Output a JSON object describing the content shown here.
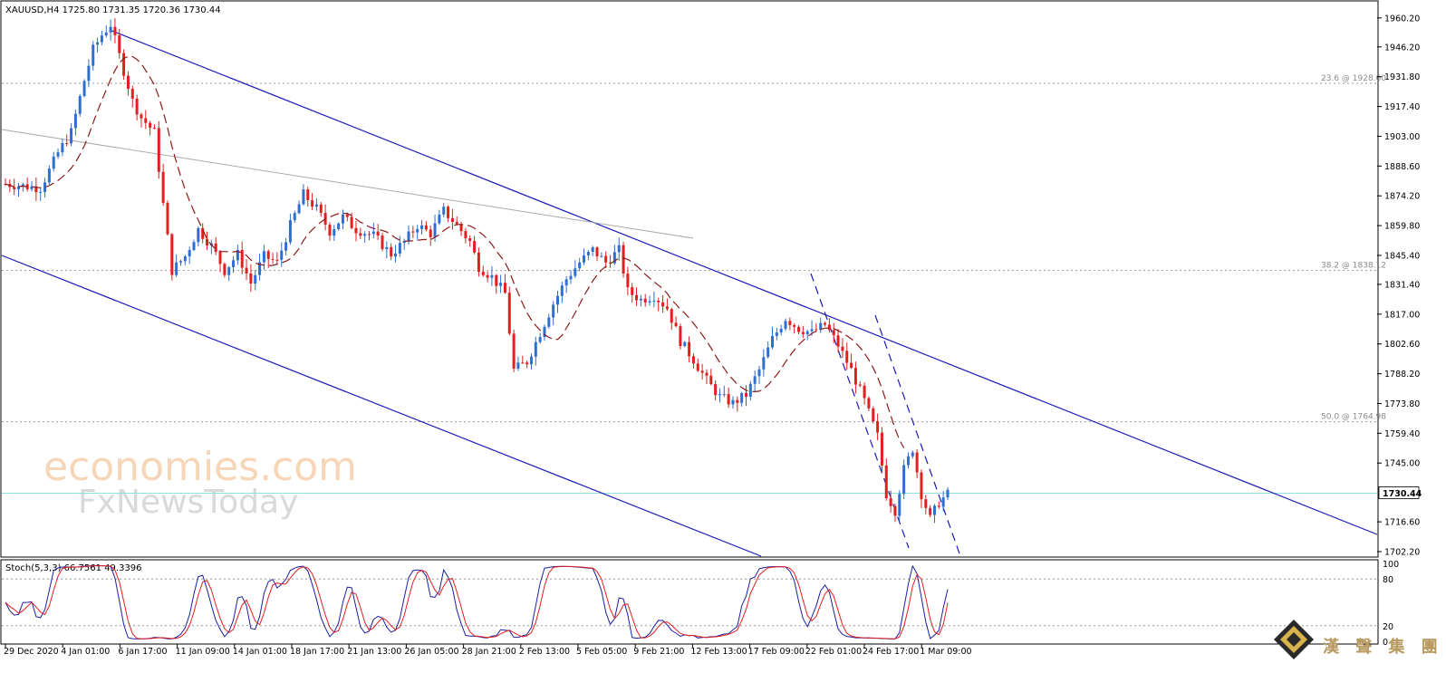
{
  "chart_data": [
    {
      "type": "candlestick",
      "title": "XAUUSD,H4  1725.80 1731.35 1720.36 1730.44",
      "ylim": [
        1700,
        1968
      ],
      "ticks": [
        "1960.20",
        "1946.20",
        "1931.80",
        "1917.40",
        "1903.00",
        "1888.60",
        "1874.20",
        "1859.80",
        "1845.40",
        "1831.40",
        "1817.00",
        "1802.60",
        "1788.20",
        "1773.80",
        "1759.40",
        "1745.00",
        "1730.44",
        "1716.60",
        "1702.20"
      ],
      "x_labels": [
        "29 Dec 2020",
        "4 Jan 01:00",
        "6 Jan 17:00",
        "11 Jan 09:00",
        "14 Jan 01:00",
        "18 Jan 17:00",
        "21 Jan 13:00",
        "26 Jan 05:00",
        "28 Jan 21:00",
        "2 Feb 13:00",
        "5 Feb 05:00",
        "9 Feb 21:00",
        "12 Feb 13:00",
        "17 Feb 09:00",
        "22 Feb 01:00",
        "24 Feb 17:00",
        "1 Mar 09:00"
      ],
      "current_price": "1730.44",
      "fib_levels": [
        {
          "label": "23.6 @ 1928.60",
          "value": 1928.6
        },
        {
          "label": "38.2 @ 1838.12",
          "value": 1838.12
        },
        {
          "label": "50.0 @ 1764.98",
          "value": 1764.98
        }
      ],
      "close_path": [
        [
          0,
          1880
        ],
        [
          8,
          1878
        ],
        [
          12,
          1895
        ],
        [
          15,
          1905
        ],
        [
          18,
          1930
        ],
        [
          20,
          1945
        ],
        [
          22,
          1952
        ],
        [
          24,
          1957
        ],
        [
          26,
          1942
        ],
        [
          29,
          1920
        ],
        [
          31,
          1912
        ],
        [
          34,
          1905
        ],
        [
          36,
          1870
        ],
        [
          38,
          1838
        ],
        [
          41,
          1845
        ],
        [
          44,
          1858
        ],
        [
          47,
          1850
        ],
        [
          50,
          1838
        ],
        [
          53,
          1846
        ],
        [
          56,
          1832
        ],
        [
          59,
          1845
        ],
        [
          62,
          1842
        ],
        [
          65,
          1860
        ],
        [
          68,
          1875
        ],
        [
          71,
          1868
        ],
        [
          74,
          1857
        ],
        [
          77,
          1864
        ],
        [
          80,
          1858
        ],
        [
          84,
          1855
        ],
        [
          88,
          1846
        ],
        [
          91,
          1852
        ],
        [
          94,
          1860
        ],
        [
          97,
          1856
        ],
        [
          100,
          1867
        ],
        [
          103,
          1860
        ],
        [
          106,
          1852
        ],
        [
          108,
          1840
        ],
        [
          111,
          1835
        ],
        [
          114,
          1827
        ],
        [
          116,
          1790
        ],
        [
          119,
          1794
        ],
        [
          122,
          1808
        ],
        [
          125,
          1822
        ],
        [
          128,
          1834
        ],
        [
          131,
          1842
        ],
        [
          134,
          1848
        ],
        [
          137,
          1842
        ],
        [
          140,
          1848
        ],
        [
          142,
          1828
        ],
        [
          145,
          1824
        ],
        [
          148,
          1826
        ],
        [
          151,
          1820
        ],
        [
          154,
          1804
        ],
        [
          157,
          1795
        ],
        [
          160,
          1785
        ],
        [
          163,
          1777
        ],
        [
          166,
          1774
        ],
        [
          169,
          1778
        ],
        [
          172,
          1790
        ],
        [
          175,
          1805
        ],
        [
          178,
          1815
        ],
        [
          181,
          1810
        ],
        [
          184,
          1808
        ],
        [
          187,
          1812
        ],
        [
          190,
          1802
        ],
        [
          193,
          1790
        ],
        [
          196,
          1775
        ],
        [
          199,
          1758
        ],
        [
          201,
          1730
        ],
        [
          203,
          1722
        ],
        [
          205,
          1742
        ],
        [
          207,
          1752
        ],
        [
          209,
          1730
        ],
        [
          211,
          1718
        ],
        [
          213,
          1726
        ],
        [
          215,
          1730
        ]
      ],
      "series": [
        {
          "name": "MA",
          "style": "dashed",
          "color": "#8b1a1a"
        },
        {
          "name": "Stoch(5,3,3)",
          "values_text": "66.7561 49.3396"
        }
      ]
    },
    {
      "type": "line",
      "title": "Stoch(5,3,3) 66.7561 49.3396",
      "ylim": [
        0,
        100
      ],
      "ticks": [
        "100",
        "80",
        "20",
        "0"
      ],
      "levels": [
        80,
        20
      ],
      "main_color": "#1e1ea0",
      "signal_color": "#e02020",
      "last_values": [
        66.7561,
        49.3396
      ]
    }
  ],
  "colors": {
    "bull": "#2f6fcf",
    "bear": "#e02020",
    "channel": "#1a1ab4",
    "ma": "#8b1a1a",
    "grid": "#9a9a9a",
    "trend": "#aaaaaa",
    "price_line": "#8fe0e0"
  },
  "watermark": {
    "line1": "economies.com",
    "line2": "FxNewsToday",
    "cn": "漢 聲 集 團"
  }
}
